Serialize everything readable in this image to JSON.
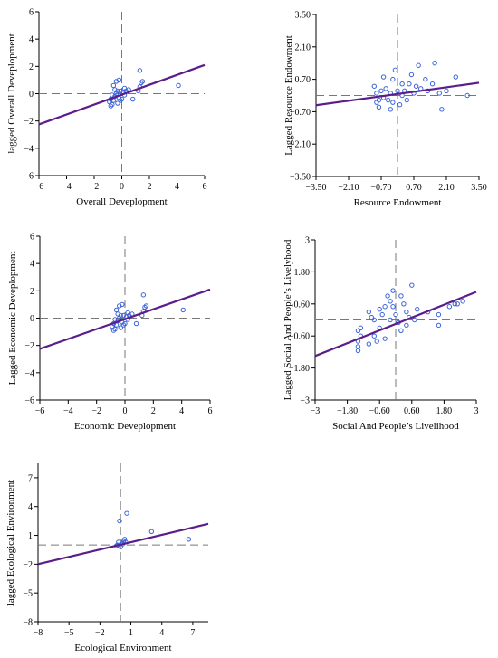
{
  "chart_data": [
    {
      "type": "scatter",
      "xlabel": "Overall Deveplopment",
      "ylabel": "lagged Overall Deveplopment",
      "xlim": [
        -6,
        6
      ],
      "ylim": [
        -6,
        6
      ],
      "xticks": [
        "−6",
        "−4",
        "−2",
        "0",
        "2",
        "4",
        "6"
      ],
      "yticks": [
        "−6",
        "−4",
        "−2",
        "0",
        "2",
        "4",
        "6"
      ],
      "ref_x": 0,
      "ref_y": 0,
      "fit_line": [
        [
          -6,
          -2.25
        ],
        [
          6,
          2.1
        ]
      ],
      "points": [
        [
          -0.9,
          -0.6
        ],
        [
          -0.8,
          -0.4
        ],
        [
          -0.7,
          -0.8
        ],
        [
          -0.6,
          -0.5
        ],
        [
          -0.5,
          -0.2
        ],
        [
          -0.4,
          0.0
        ],
        [
          -0.3,
          -0.7
        ],
        [
          -0.2,
          -0.3
        ],
        [
          -0.1,
          0.2
        ],
        [
          0.0,
          -0.4
        ],
        [
          0.1,
          0.1
        ],
        [
          0.2,
          0.4
        ],
        [
          -0.6,
          0.6
        ],
        [
          -0.4,
          0.9
        ],
        [
          -0.2,
          1.0
        ],
        [
          -0.5,
          0.3
        ],
        [
          -0.3,
          0.2
        ],
        [
          -0.7,
          -0.1
        ],
        [
          0.3,
          0.2
        ],
        [
          0.5,
          0.3
        ],
        [
          0.2,
          -0.1
        ],
        [
          -0.8,
          -0.9
        ],
        [
          -0.1,
          -0.5
        ],
        [
          0.8,
          -0.4
        ],
        [
          1.2,
          0.2
        ],
        [
          1.3,
          0.5
        ],
        [
          1.4,
          0.8
        ],
        [
          1.3,
          1.7
        ],
        [
          1.5,
          0.9
        ],
        [
          4.1,
          0.6
        ]
      ]
    },
    {
      "type": "scatter",
      "xlabel": "Resource Endowment",
      "ylabel": "Lagged Resource Endowment",
      "xlim": [
        -3.5,
        3.5
      ],
      "ylim": [
        -3.5,
        3.5
      ],
      "xticks": [
        "−3.50",
        "−2.10",
        "−0.70",
        "0.70",
        "2.10",
        "3.50"
      ],
      "yticks": [
        "−3.50",
        "−2.10",
        "−0.70",
        "0.70",
        "2.10",
        "3.50"
      ],
      "ref_x": 0,
      "ref_y": 0,
      "fit_line": [
        [
          -3.5,
          -0.42
        ],
        [
          3.5,
          0.55
        ]
      ],
      "points": [
        [
          -1.0,
          0.4
        ],
        [
          -0.9,
          -0.3
        ],
        [
          -0.9,
          0.1
        ],
        [
          -0.8,
          -0.5
        ],
        [
          -0.8,
          -0.2
        ],
        [
          -0.7,
          0.2
        ],
        [
          -0.6,
          -0.1
        ],
        [
          -0.5,
          0.3
        ],
        [
          -0.6,
          0.8
        ],
        [
          -0.4,
          -0.2
        ],
        [
          -0.3,
          0.1
        ],
        [
          -0.2,
          -0.3
        ],
        [
          -0.2,
          0.7
        ],
        [
          -0.1,
          1.1
        ],
        [
          0.0,
          0.2
        ],
        [
          0.1,
          -0.4
        ],
        [
          0.2,
          0.0
        ],
        [
          0.3,
          0.2
        ],
        [
          0.4,
          -0.2
        ],
        [
          0.5,
          0.5
        ],
        [
          0.6,
          0.9
        ],
        [
          0.7,
          0.1
        ],
        [
          0.8,
          0.4
        ],
        [
          0.9,
          1.3
        ],
        [
          1.0,
          0.3
        ],
        [
          1.2,
          0.7
        ],
        [
          1.3,
          0.2
        ],
        [
          1.5,
          0.5
        ],
        [
          1.6,
          1.4
        ],
        [
          1.8,
          0.1
        ],
        [
          1.9,
          -0.6
        ],
        [
          2.1,
          0.2
        ],
        [
          2.5,
          0.8
        ],
        [
          3.0,
          0.0
        ],
        [
          -0.3,
          -0.6
        ],
        [
          0.2,
          0.5
        ]
      ]
    },
    {
      "type": "scatter",
      "xlabel": "Economic Deveplopment",
      "ylabel": "Lagged Economic Deveplopment",
      "xlim": [
        -6,
        6
      ],
      "ylim": [
        -6,
        6
      ],
      "xticks": [
        "−6",
        "−4",
        "−2",
        "0",
        "2",
        "4",
        "6"
      ],
      "yticks": [
        "−6",
        "−4",
        "−2",
        "0",
        "2",
        "4",
        "6"
      ],
      "ref_x": 0,
      "ref_y": 0,
      "fit_line": [
        [
          -6,
          -2.25
        ],
        [
          6,
          2.1
        ]
      ],
      "points": [
        [
          -0.9,
          -0.6
        ],
        [
          -0.8,
          -0.4
        ],
        [
          -0.7,
          -0.8
        ],
        [
          -0.6,
          -0.5
        ],
        [
          -0.5,
          -0.2
        ],
        [
          -0.4,
          0.0
        ],
        [
          -0.3,
          -0.7
        ],
        [
          -0.2,
          -0.3
        ],
        [
          -0.1,
          0.2
        ],
        [
          0.0,
          -0.4
        ],
        [
          0.1,
          0.1
        ],
        [
          0.2,
          0.4
        ],
        [
          -0.6,
          0.6
        ],
        [
          -0.4,
          0.9
        ],
        [
          -0.2,
          1.0
        ],
        [
          -0.5,
          0.3
        ],
        [
          -0.3,
          0.2
        ],
        [
          -0.7,
          -0.1
        ],
        [
          0.3,
          0.2
        ],
        [
          0.5,
          0.3
        ],
        [
          0.2,
          -0.1
        ],
        [
          -0.8,
          -0.9
        ],
        [
          -0.1,
          -0.5
        ],
        [
          0.8,
          -0.4
        ],
        [
          1.2,
          0.2
        ],
        [
          1.3,
          0.5
        ],
        [
          1.4,
          0.8
        ],
        [
          1.3,
          1.7
        ],
        [
          1.5,
          0.9
        ],
        [
          4.1,
          0.6
        ]
      ]
    },
    {
      "type": "scatter",
      "xlabel": "Social And People’s Livelihood",
      "ylabel": "Lagged Social And People’s Livelyhood",
      "xlim": [
        -3,
        3
      ],
      "ylim": [
        -3,
        3
      ],
      "xticks": [
        "−3",
        "−1.80",
        "−0.60",
        "0.60",
        "1.80",
        "3"
      ],
      "yticks": [
        "−3",
        "−1.80",
        "−0.60",
        "0.60",
        "1.80",
        "3"
      ],
      "ref_x": 0,
      "ref_y": 0,
      "fit_line": [
        [
          -3,
          -1.35
        ],
        [
          3,
          1.05
        ]
      ],
      "points": [
        [
          -1.4,
          -1.0
        ],
        [
          -1.4,
          -0.8
        ],
        [
          -1.3,
          -0.6
        ],
        [
          -1.4,
          -0.4
        ],
        [
          -1.3,
          -0.3
        ],
        [
          -1.4,
          -1.15
        ],
        [
          -1.0,
          -0.9
        ],
        [
          -1.0,
          0.3
        ],
        [
          -0.9,
          0.1
        ],
        [
          -0.8,
          -0.6
        ],
        [
          -0.7,
          -0.8
        ],
        [
          -0.6,
          -0.3
        ],
        [
          -0.6,
          0.4
        ],
        [
          -0.5,
          0.2
        ],
        [
          -0.4,
          -0.7
        ],
        [
          -0.4,
          0.5
        ],
        [
          -0.3,
          0.9
        ],
        [
          -0.2,
          0.0
        ],
        [
          -0.2,
          0.7
        ],
        [
          -0.1,
          1.1
        ],
        [
          -0.1,
          0.5
        ],
        [
          0.0,
          0.2
        ],
        [
          0.1,
          -0.1
        ],
        [
          0.2,
          -0.4
        ],
        [
          0.3,
          0.6
        ],
        [
          0.4,
          0.3
        ],
        [
          0.4,
          -0.2
        ],
        [
          0.5,
          0.1
        ],
        [
          0.6,
          1.3
        ],
        [
          0.7,
          0.0
        ],
        [
          0.8,
          0.4
        ],
        [
          1.2,
          0.3
        ],
        [
          1.6,
          0.2
        ],
        [
          1.6,
          -0.2
        ],
        [
          2.0,
          0.5
        ],
        [
          2.2,
          0.6
        ],
        [
          2.3,
          0.6
        ],
        [
          2.5,
          0.7
        ],
        [
          -0.8,
          0.0
        ],
        [
          0.2,
          0.9
        ]
      ]
    },
    {
      "type": "scatter",
      "xlabel": "Ecological Environment",
      "ylabel": "lagged Ecological Environment",
      "xlim": [
        -8,
        8.5
      ],
      "ylim": [
        -8,
        8.5
      ],
      "xticks": [
        "−8",
        "−5",
        "−2",
        "1",
        "4",
        "7"
      ],
      "yticks": [
        "−8",
        "−5",
        "−2",
        "1",
        "4",
        "7"
      ],
      "tick_values": [
        -8,
        -5,
        -2,
        1,
        4,
        7
      ],
      "ref_x": 0,
      "ref_y": 0,
      "fit_line": [
        [
          -8,
          -2.0
        ],
        [
          8.5,
          2.2
        ]
      ],
      "points": [
        [
          -0.4,
          -0.1
        ],
        [
          -0.2,
          0.3
        ],
        [
          0.0,
          -0.2
        ],
        [
          0.1,
          0.2
        ],
        [
          0.3,
          0.4
        ],
        [
          0.2,
          0.1
        ],
        [
          -0.3,
          0.0
        ],
        [
          0.4,
          0.6
        ],
        [
          0.5,
          0.3
        ],
        [
          -0.1,
          2.5
        ],
        [
          0.6,
          3.3
        ],
        [
          3.0,
          1.4
        ],
        [
          6.6,
          0.6
        ]
      ]
    }
  ]
}
